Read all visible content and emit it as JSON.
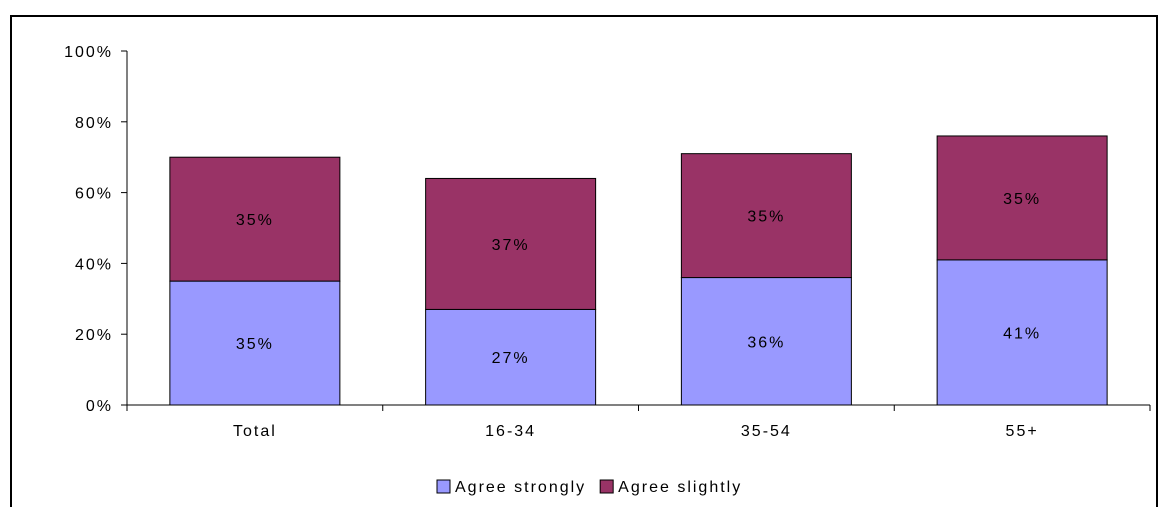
{
  "chart_data": {
    "type": "bar",
    "stacked": true,
    "categories": [
      "Total",
      "16-34",
      "35-54",
      "55+"
    ],
    "series": [
      {
        "name": "Agree strongly",
        "color": "#9999ff",
        "values": [
          35,
          27,
          36,
          41
        ],
        "labels": [
          "35%",
          "27%",
          "36%",
          "41%"
        ]
      },
      {
        "name": "Agree slightly",
        "color": "#993366",
        "values": [
          35,
          37,
          35,
          35
        ],
        "labels": [
          "35%",
          "37%",
          "35%",
          "35%"
        ]
      }
    ],
    "ylim": [
      0,
      100
    ],
    "yticks": [
      0,
      20,
      40,
      60,
      80,
      100
    ],
    "ytick_labels": [
      "0%",
      "20%",
      "40%",
      "60%",
      "80%",
      "100%"
    ],
    "legend_position": "bottom",
    "grid": false
  }
}
